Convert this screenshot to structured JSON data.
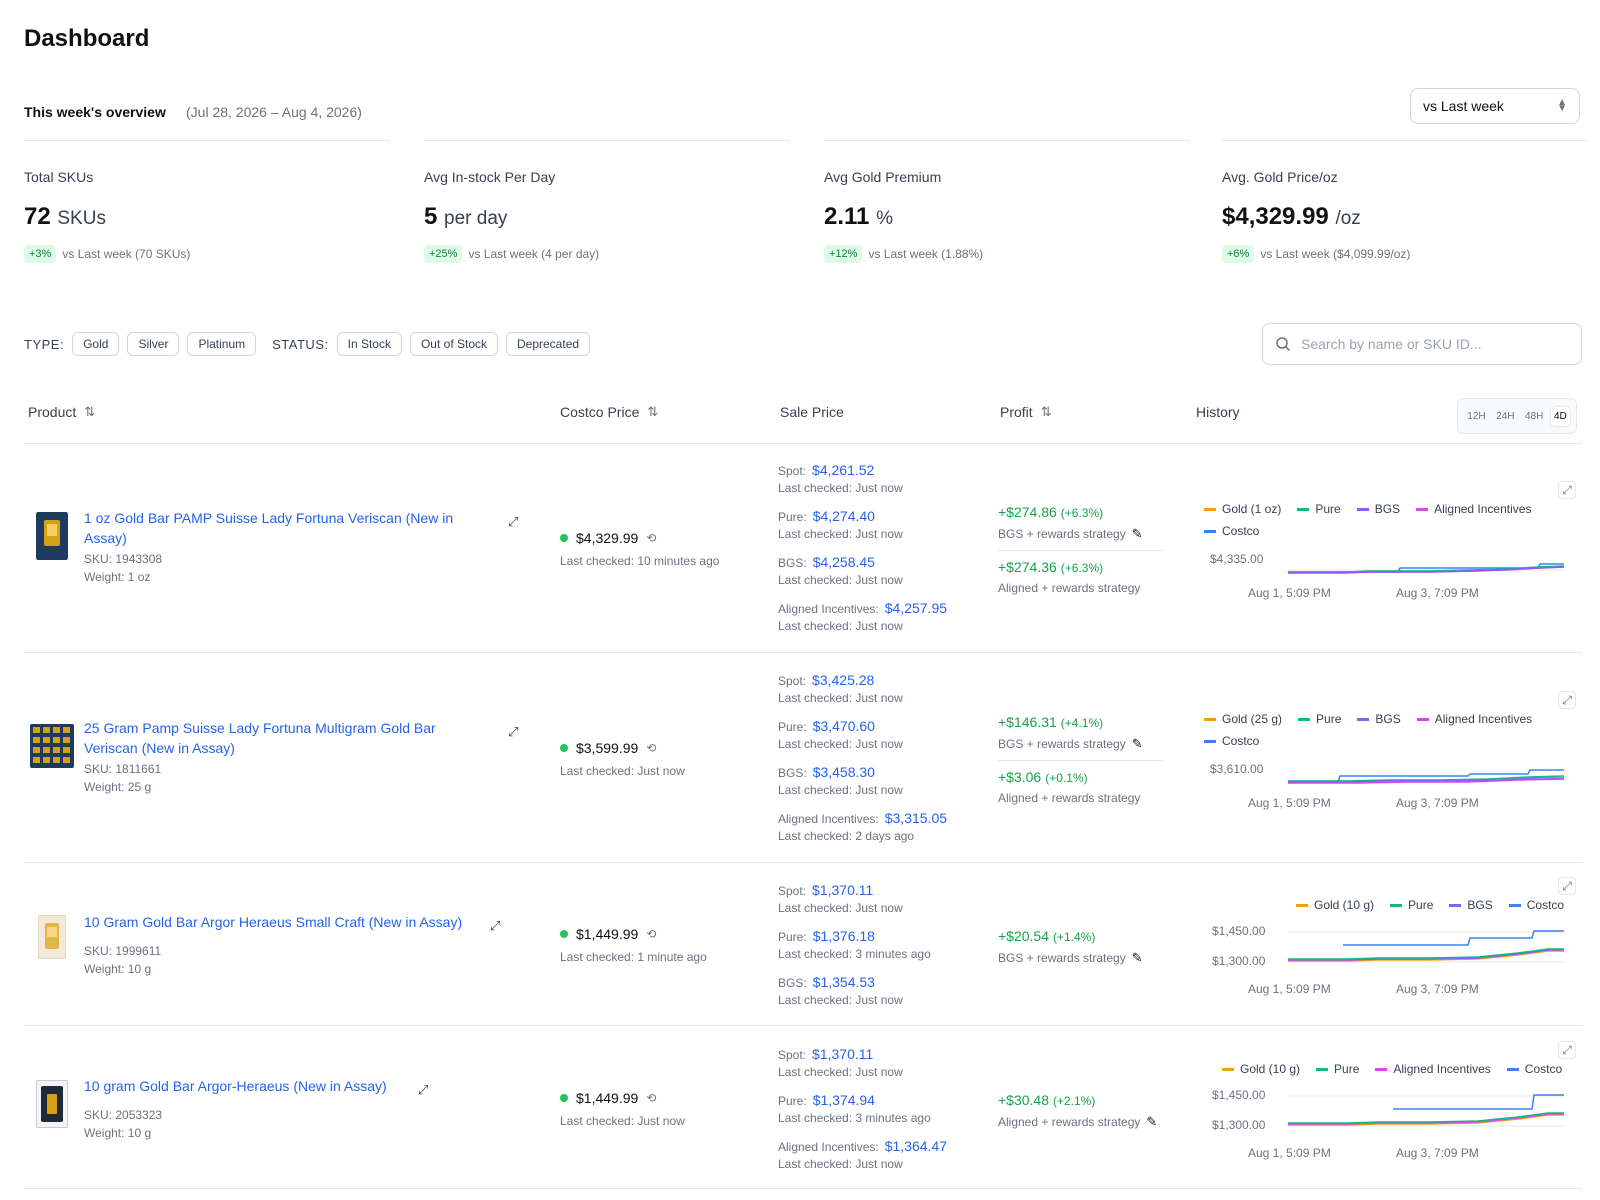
{
  "page": {
    "title": "Dashboard"
  },
  "overview": {
    "label": "This week's overview",
    "range": "(Jul 28, 2026 – Aug 4, 2026)",
    "compare_select": "vs Last week"
  },
  "stats": [
    {
      "label": "Total SKUs",
      "value": "72",
      "unit": "SKUs",
      "badge": "+3%",
      "compare": "vs Last week (70 SKUs)"
    },
    {
      "label": "Avg In-stock Per Day",
      "value": "5",
      "unit": "per day",
      "badge": "+25%",
      "compare": "vs Last week (4 per day)"
    },
    {
      "label": "Avg Gold Premium",
      "value": "2.11",
      "unit": "%",
      "badge": "+12%",
      "compare": "vs Last week (1.88%)"
    },
    {
      "label": "Avg. Gold Price/oz",
      "value": "$4,329.99",
      "unit": "/oz",
      "badge": "+6%",
      "compare": "vs Last week ($4,099.99/oz)"
    }
  ],
  "filters": {
    "type_label": "TYPE:",
    "types": [
      "Gold",
      "Silver",
      "Platinum"
    ],
    "status_label": "STATUS:",
    "statuses": [
      "In Stock",
      "Out of Stock",
      "Deprecated"
    ],
    "search_placeholder": "Search by name or SKU ID..."
  },
  "table": {
    "headers": {
      "product": "Product",
      "costco_price": "Costco Price",
      "sale_price": "Sale Price",
      "profit": "Profit",
      "history": "History"
    },
    "timeframes": [
      "12H",
      "24H",
      "48H",
      "4D"
    ],
    "active_timeframe": "4D"
  },
  "colors": {
    "gold": "#f59e0b",
    "pure": "#10b981",
    "bgs": "#8b5cf6",
    "aligned": "#d946ef",
    "costco": "#3b82f6",
    "link": "#2563eb",
    "profit": "#16a34a"
  },
  "rows": [
    {
      "name": "1 oz Gold Bar PAMP Suisse Lady Fortuna Veriscan (New in Assay)",
      "sku": "SKU: 1943308",
      "weight": "Weight: 1 oz",
      "thumb_icon": "gold-bar-icon",
      "costco_price": "$4,329.99",
      "costco_checked": "Last checked: 10 minutes ago",
      "sale": [
        {
          "name": "Spot:",
          "value": "$4,261.52",
          "checked": "Last checked: Just now"
        },
        {
          "name": "Pure:",
          "value": "$4,274.40",
          "checked": "Last checked: Just now"
        },
        {
          "name": "BGS:",
          "value": "$4,258.45",
          "checked": "Last checked: Just now"
        },
        {
          "name": "Aligned Incentives:",
          "value": "$4,257.95",
          "checked": "Last checked: Just now"
        }
      ],
      "profit": [
        {
          "amount": "+$274.86",
          "pct": "(+6.3%)",
          "strategy": "BGS + rewards strategy",
          "edit": true
        },
        {
          "amount": "+$274.36",
          "pct": "(+6.3%)",
          "strategy": "Aligned + rewards strategy",
          "edit": false
        }
      ],
      "history": {
        "legend": [
          "Gold (1 oz)",
          "Pure",
          "BGS",
          "Aligned Incentives",
          "Costco"
        ],
        "legend_colors": [
          "#f59e0b",
          "#10b981",
          "#8b5cf6",
          "#d946ef",
          "#3b82f6"
        ],
        "yticks": [
          "$4,335.00"
        ],
        "xticks": [
          "Aug 1, 5:09 PM",
          "Aug 3, 7:09 PM"
        ]
      }
    },
    {
      "name": "25 Gram Pamp Suisse Lady Fortuna Multigram Gold Bar Veriscan (New in Assay)",
      "sku": "SKU: 1811661",
      "weight": "Weight: 25 g",
      "thumb_icon": "multigram-bar-icon",
      "costco_price": "$3,599.99",
      "costco_checked": "Last checked: Just now",
      "sale": [
        {
          "name": "Spot:",
          "value": "$3,425.28",
          "checked": "Last checked: Just now"
        },
        {
          "name": "Pure:",
          "value": "$3,470.60",
          "checked": "Last checked: Just now"
        },
        {
          "name": "BGS:",
          "value": "$3,458.30",
          "checked": "Last checked: Just now"
        },
        {
          "name": "Aligned Incentives:",
          "value": "$3,315.05",
          "checked": "Last checked: 2 days ago"
        }
      ],
      "profit": [
        {
          "amount": "+$146.31",
          "pct": "(+4.1%)",
          "strategy": "BGS + rewards strategy",
          "edit": true
        },
        {
          "amount": "+$3.06",
          "pct": "(+0.1%)",
          "strategy": "Aligned + rewards strategy",
          "edit": false
        }
      ],
      "history": {
        "legend": [
          "Gold (25 g)",
          "Pure",
          "BGS",
          "Aligned Incentives",
          "Costco"
        ],
        "legend_colors": [
          "#f59e0b",
          "#10b981",
          "#8b5cf6",
          "#d946ef",
          "#3b82f6"
        ],
        "yticks": [
          "$3,610.00"
        ],
        "xticks": [
          "Aug 1, 5:09 PM",
          "Aug 3, 7:09 PM"
        ]
      }
    },
    {
      "name": "10 Gram Gold Bar Argor Heraeus Small Craft (New in Assay)",
      "sku": "SKU: 1999611",
      "weight": "Weight: 10 g",
      "thumb_icon": "small-gold-bar-icon",
      "costco_price": "$1,449.99",
      "costco_checked": "Last checked: 1 minute ago",
      "sale": [
        {
          "name": "Spot:",
          "value": "$1,370.11",
          "checked": "Last checked: Just now"
        },
        {
          "name": "Pure:",
          "value": "$1,376.18",
          "checked": "Last checked: 3 minutes ago"
        },
        {
          "name": "BGS:",
          "value": "$1,354.53",
          "checked": "Last checked: Just now"
        }
      ],
      "profit": [
        {
          "amount": "+$20.54",
          "pct": "(+1.4%)",
          "strategy": "BGS + rewards strategy",
          "edit": true
        }
      ],
      "history": {
        "legend": [
          "Gold (10 g)",
          "Pure",
          "BGS",
          "Costco"
        ],
        "legend_colors": [
          "#f59e0b",
          "#10b981",
          "#8b5cf6",
          "#3b82f6"
        ],
        "yticks": [
          "$1,450.00",
          "$1,300.00"
        ],
        "xticks": [
          "Aug 1, 5:09 PM",
          "Aug 3, 7:09 PM"
        ]
      }
    },
    {
      "name": "10 gram Gold Bar Argor-Heraeus (New in Assay)",
      "sku": "SKU: 2053323",
      "weight": "Weight: 10 g",
      "thumb_icon": "gold-bar-dark-icon",
      "costco_price": "$1,449.99",
      "costco_checked": "Last checked: Just now",
      "sale": [
        {
          "name": "Spot:",
          "value": "$1,370.11",
          "checked": "Last checked: Just now"
        },
        {
          "name": "Pure:",
          "value": "$1,374.94",
          "checked": "Last checked: 3 minutes ago"
        },
        {
          "name": "Aligned Incentives:",
          "value": "$1,364.47",
          "checked": "Last checked: Just now"
        }
      ],
      "profit": [
        {
          "amount": "+$30.48",
          "pct": "(+2.1%)",
          "strategy": "Aligned + rewards strategy",
          "edit": true
        }
      ],
      "history": {
        "legend": [
          "Gold (10 g)",
          "Pure",
          "Aligned Incentives",
          "Costco"
        ],
        "legend_colors": [
          "#f59e0b",
          "#10b981",
          "#d946ef",
          "#3b82f6"
        ],
        "yticks": [
          "$1,450.00",
          "$1,300.00"
        ],
        "xticks": [
          "Aug 1, 5:09 PM",
          "Aug 3, 7:09 PM"
        ]
      }
    }
  ]
}
